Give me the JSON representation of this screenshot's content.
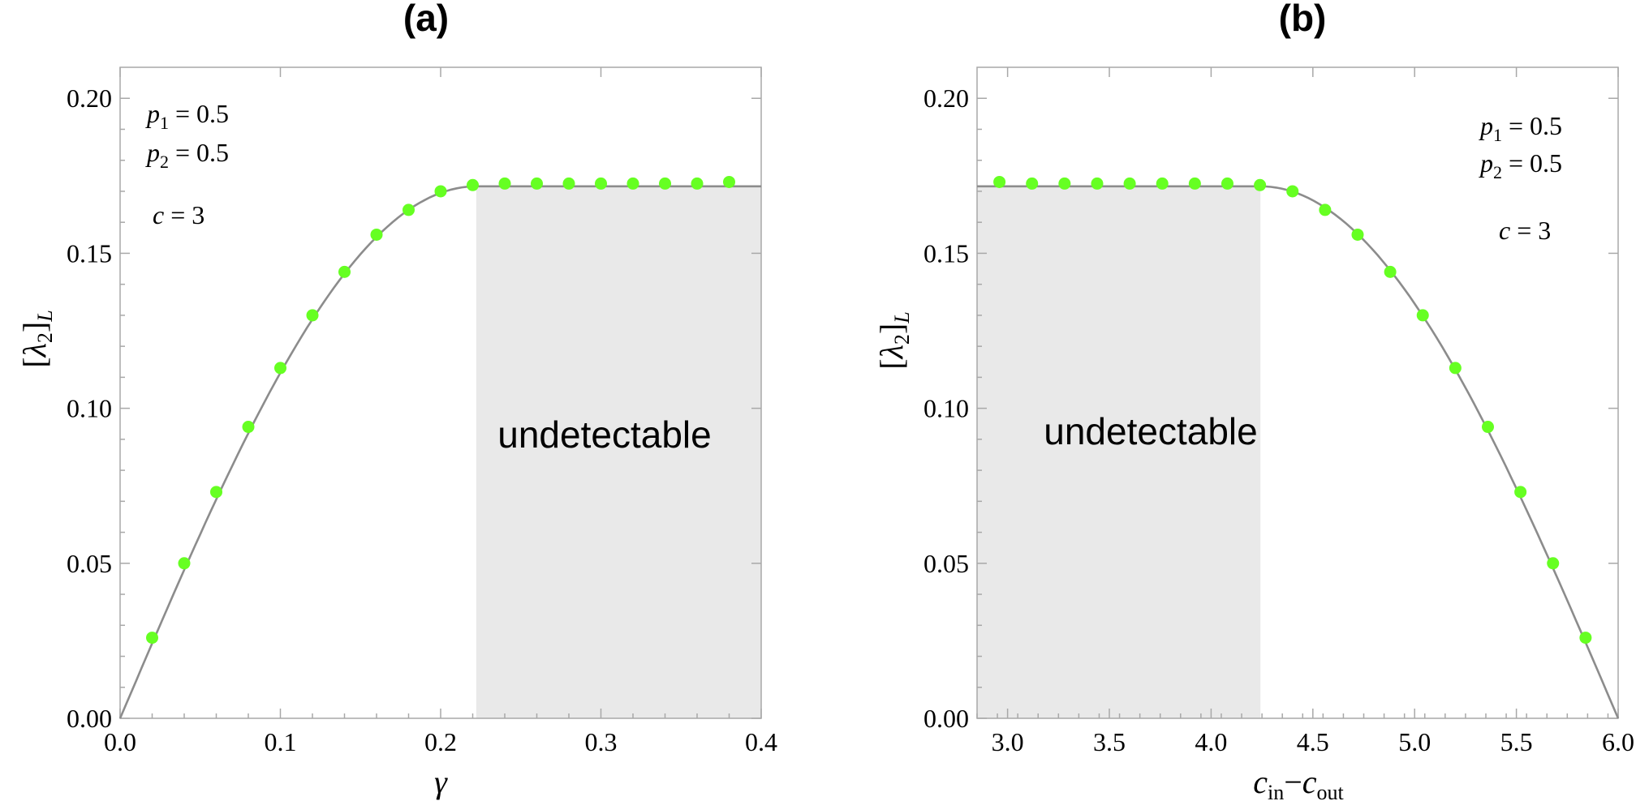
{
  "chart_data": [
    {
      "type": "scatter",
      "panel_title": "(a)",
      "xlabel": "γ",
      "ylabel": "[λ₂]L",
      "xlim": [
        0.0,
        0.4
      ],
      "ylim": [
        0.0,
        0.21
      ],
      "xticks": [
        "0.0",
        "0.1",
        "0.2",
        "0.3",
        "0.4"
      ],
      "xtick_values": [
        0.0,
        0.1,
        0.2,
        0.3,
        0.4
      ],
      "yticks": [
        "0.00",
        "0.05",
        "0.10",
        "0.15",
        "0.20"
      ],
      "ytick_values": [
        0.0,
        0.05,
        0.1,
        0.15,
        0.2
      ],
      "grid": false,
      "plateau_value": 0.1716,
      "threshold_x": 0.2222,
      "shaded_region": {
        "x_from": 0.2222,
        "x_to": 0.4,
        "label": "undetectable"
      },
      "annotations": {
        "p1": "p1 = 0.5",
        "p2": "p2 = 0.5",
        "c": "c = 3"
      },
      "points": {
        "x": [
          0.02,
          0.04,
          0.06,
          0.08,
          0.1,
          0.12,
          0.14,
          0.16,
          0.18,
          0.2,
          0.22,
          0.24,
          0.26,
          0.28,
          0.3,
          0.32,
          0.34,
          0.36,
          0.38
        ],
        "y": [
          0.026,
          0.05,
          0.073,
          0.094,
          0.113,
          0.13,
          0.144,
          0.156,
          0.164,
          0.17,
          0.172,
          0.1725,
          0.1725,
          0.1725,
          0.1725,
          0.1725,
          0.1725,
          0.1725,
          0.173
        ]
      },
      "point_color": "#66ff22",
      "curve_color": "#8c8c8c",
      "shade_color": "#e9e9e9"
    },
    {
      "type": "scatter",
      "panel_title": "(b)",
      "xlabel": "cin−cout",
      "ylabel": "[λ₂]L",
      "xlim": [
        2.85,
        6.0
      ],
      "ylim": [
        0.0,
        0.21
      ],
      "xticks": [
        "3.0",
        "3.5",
        "4.0",
        "4.5",
        "5.0",
        "5.5",
        "6.0"
      ],
      "xtick_values": [
        3.0,
        3.5,
        4.0,
        4.5,
        5.0,
        5.5,
        6.0
      ],
      "yticks": [
        "0.00",
        "0.05",
        "0.10",
        "0.15",
        "0.20"
      ],
      "ytick_values": [
        0.0,
        0.05,
        0.1,
        0.15,
        0.2
      ],
      "grid": false,
      "plateau_value": 0.1716,
      "threshold_x": 4.2426,
      "shaded_region": {
        "x_from": 2.85,
        "x_to": 4.2426,
        "label": "undetectable"
      },
      "annotations": {
        "p1": "p1 = 0.5",
        "p2": "p2 = 0.5",
        "c": "c = 3"
      },
      "points": {
        "x": [
          2.96,
          3.12,
          3.28,
          3.44,
          3.6,
          3.76,
          3.92,
          4.08,
          4.24,
          4.4,
          4.56,
          4.72,
          4.88,
          5.04,
          5.2,
          5.36,
          5.52,
          5.68,
          5.84
        ],
        "y": [
          0.173,
          0.1725,
          0.1725,
          0.1725,
          0.1725,
          0.1725,
          0.1725,
          0.1725,
          0.172,
          0.17,
          0.164,
          0.156,
          0.144,
          0.13,
          0.113,
          0.094,
          0.073,
          0.05,
          0.026
        ]
      },
      "point_color": "#66ff22",
      "curve_color": "#8c8c8c",
      "shade_color": "#e9e9e9"
    }
  ]
}
